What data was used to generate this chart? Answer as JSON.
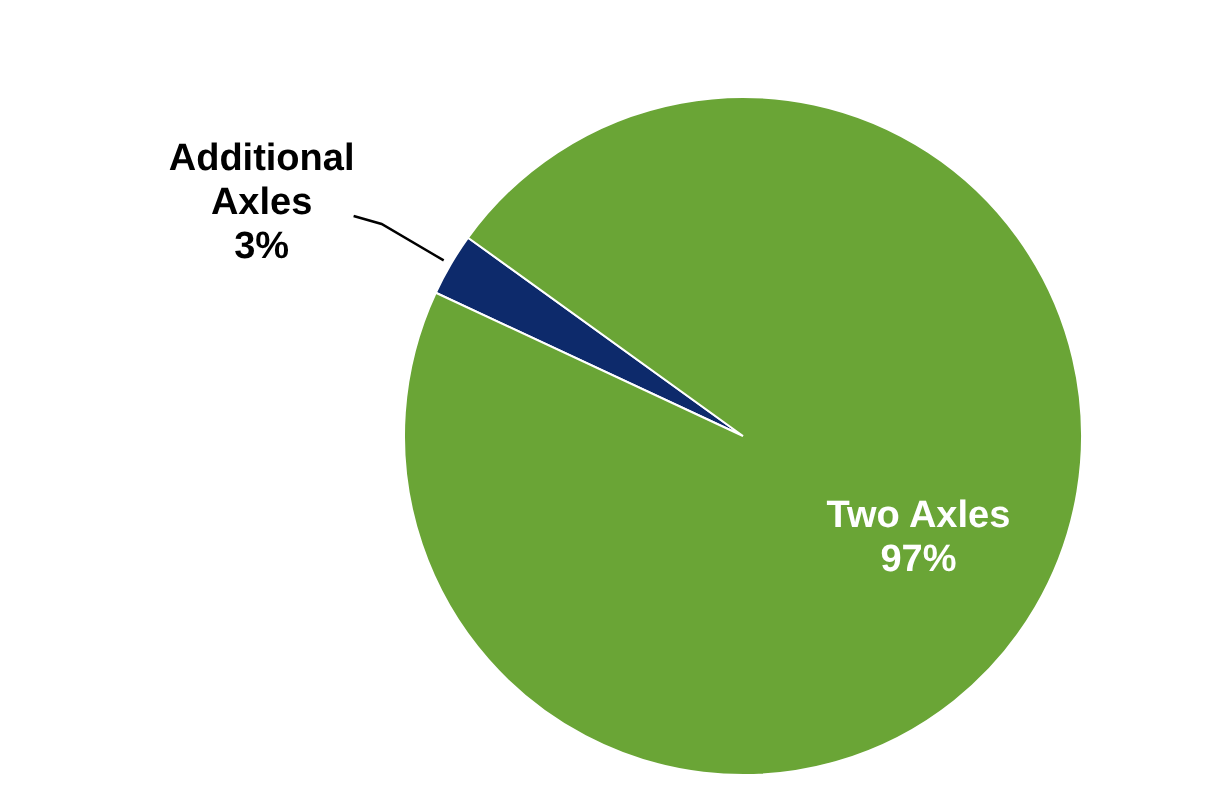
{
  "chart_data": {
    "type": "pie",
    "categories": [
      "Additional Axles",
      "Two Axles"
    ],
    "values": [
      3,
      97
    ],
    "colors": [
      "#0d2a6b",
      "#6aa536"
    ],
    "value_labels": [
      "3%",
      "97%"
    ],
    "legend": false
  }
}
